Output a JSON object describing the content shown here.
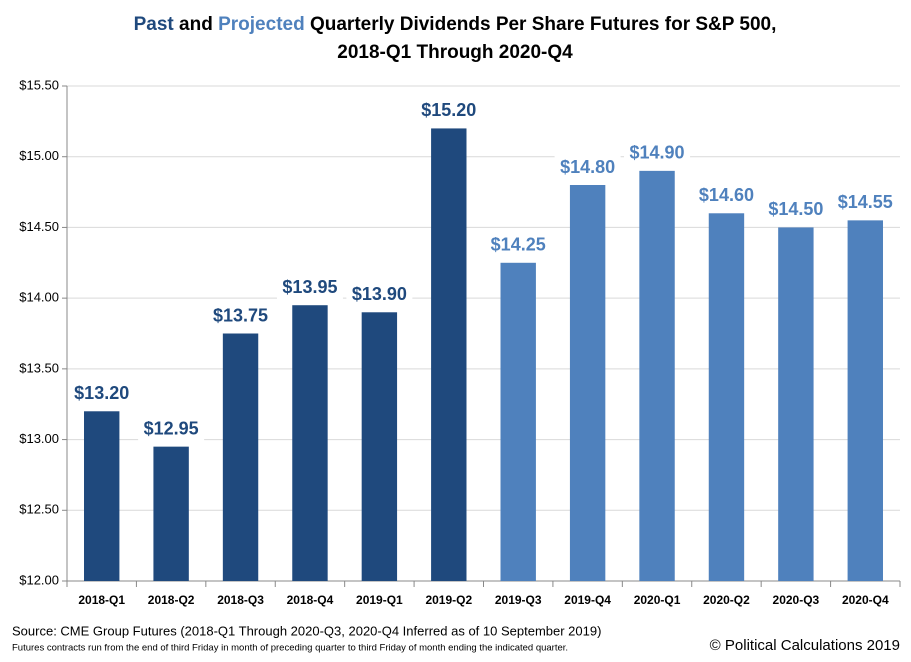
{
  "chart_data": {
    "type": "bar",
    "title_segments": [
      {
        "text": "Past",
        "color": "#1f497d"
      },
      {
        "text": " and ",
        "color": "#000000"
      },
      {
        "text": "Projected",
        "color": "#4f81bd"
      },
      {
        "text": " Quarterly Dividends Per Share Futures for S&P 500,",
        "color": "#000000"
      }
    ],
    "title_line2": "2018-Q1 Through 2020-Q4",
    "categories": [
      "2018-Q1",
      "2018-Q2",
      "2018-Q3",
      "2018-Q4",
      "2019-Q1",
      "2019-Q2",
      "2019-Q3",
      "2019-Q4",
      "2020-Q1",
      "2020-Q2",
      "2020-Q3",
      "2020-Q4"
    ],
    "values": [
      13.2,
      12.95,
      13.75,
      13.95,
      13.9,
      15.2,
      14.25,
      14.8,
      14.9,
      14.6,
      14.5,
      14.55
    ],
    "value_labels": [
      "$13.20",
      "$12.95",
      "$13.75",
      "$13.95",
      "$13.90",
      "$15.20",
      "$14.25",
      "$14.80",
      "$14.90",
      "$14.60",
      "$14.50",
      "$14.55"
    ],
    "colors": [
      "#1f497d",
      "#1f497d",
      "#1f497d",
      "#1f497d",
      "#1f497d",
      "#1f497d",
      "#4f81bd",
      "#4f81bd",
      "#4f81bd",
      "#4f81bd",
      "#4f81bd",
      "#4f81bd"
    ],
    "ylim": [
      12,
      15.5
    ],
    "yticks": [
      {
        "value": 12,
        "label": "$12.00"
      },
      {
        "value": 12.5,
        "label": "$12.50"
      },
      {
        "value": 13,
        "label": "$13.00"
      },
      {
        "value": 13.5,
        "label": "$13.50"
      },
      {
        "value": 14,
        "label": "$14.00"
      },
      {
        "value": 14.5,
        "label": "$14.50"
      },
      {
        "value": 15,
        "label": "$15.00"
      },
      {
        "value": 15.5,
        "label": "$15.50"
      }
    ],
    "grid": true,
    "source": "Source:  CME Group Futures (2018-Q1 Through 2020-Q3, 2020-Q4 Inferred as of 10 September 2019)",
    "note": "Futures contracts run from the end of third Friday in month of preceding quarter to third Friday of month ending the indicated quarter.",
    "credit": "© Political Calculations 2019"
  }
}
